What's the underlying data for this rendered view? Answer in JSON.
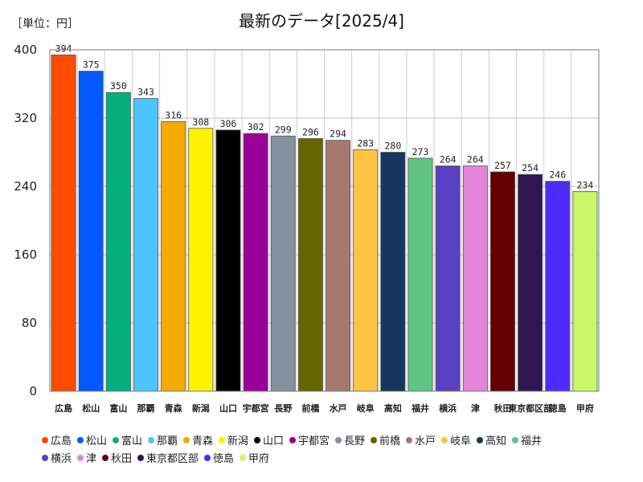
{
  "chart_data": {
    "type": "bar",
    "title": "最新のデータ[2025/4]",
    "unit_label": "［単位：円］",
    "xlabel": "",
    "ylabel": "",
    "ylim": [
      0,
      400
    ],
    "yticks": [
      0,
      80,
      160,
      240,
      320,
      400
    ],
    "grid": true,
    "legend_position": "bottom",
    "categories": [
      "広島",
      "松山",
      "富山",
      "那覇",
      "青森",
      "新潟",
      "山口",
      "宇都宮",
      "長野",
      "前橋",
      "水戸",
      "岐阜",
      "高知",
      "福井",
      "横浜",
      "津",
      "秋田",
      "東京都区部",
      "徳島",
      "甲府"
    ],
    "axis_labels": [
      "広島",
      "松山",
      "富山",
      "那覇",
      "青森",
      "新潟",
      "山口",
      "宇都宮",
      "長野",
      "前橋",
      "水戸",
      "岐阜",
      "高知",
      "福井",
      "横浜",
      "津",
      "秋田",
      "東京都区部",
      "徳島",
      "甲府"
    ],
    "values": [
      394,
      375,
      350,
      343,
      316,
      308,
      306,
      302,
      299,
      296,
      294,
      283,
      280,
      273,
      264,
      264,
      257,
      254,
      246,
      234
    ],
    "colors": [
      "#ff4b00",
      "#005aff",
      "#03af7a",
      "#4dc4ff",
      "#f6aa00",
      "#fff100",
      "#000000",
      "#990099",
      "#84919e",
      "#666600",
      "#a67a6f",
      "#ffc342",
      "#18355f",
      "#60c382",
      "#5841c4",
      "#e484d8",
      "#660000",
      "#2f1653",
      "#4d2bff",
      "#c8f767"
    ]
  }
}
